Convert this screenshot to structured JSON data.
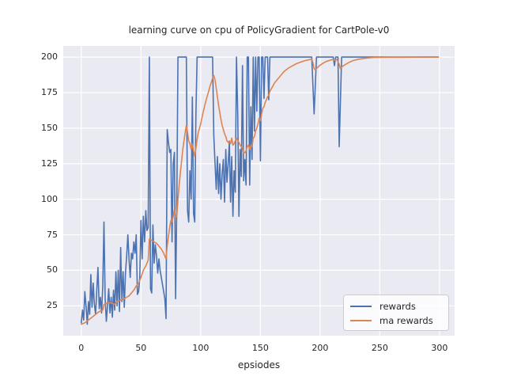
{
  "title": "learning curve on cpu of PolicyGradient for CartPole-v0",
  "chart_data": {
    "type": "line",
    "title": "learning curve on cpu of PolicyGradient for CartPole-v0",
    "xlabel": "epsiodes",
    "ylabel": "",
    "xlim": [
      -15.1,
      312.65
    ],
    "ylim": [
      4.0,
      207.85
    ],
    "xticks": [
      "0",
      "50",
      "100",
      "150",
      "200",
      "250",
      "300"
    ],
    "xtick_values": [
      0,
      50,
      100,
      150,
      200,
      250,
      300
    ],
    "yticks": [
      "25",
      "50",
      "75",
      "100",
      "125",
      "150",
      "175",
      "200"
    ],
    "ytick_values": [
      25,
      50,
      75,
      100,
      125,
      150,
      175,
      200
    ],
    "grid": true,
    "legend_position": "lower right",
    "colors": {
      "axes_background": "#EAEAF2",
      "grid": "#FFFFFF",
      "text": "#262626",
      "rewards": "#4C72B0",
      "ma_rewards": "#DD8452",
      "legend_face": "rgba(255,255,255,0.8)",
      "legend_edge": "#CCCCCC"
    },
    "legend": {
      "entries": [
        {
          "label": "rewards",
          "color": "#4C72B0"
        },
        {
          "label": "ma rewards",
          "color": "#DD8452"
        }
      ]
    },
    "series": [
      {
        "name": "rewards",
        "color": "#4C72B0",
        "points": [
          [
            0,
            13
          ],
          [
            1,
            22
          ],
          [
            2,
            15
          ],
          [
            3,
            35
          ],
          [
            4,
            25
          ],
          [
            5,
            12
          ],
          [
            6,
            28
          ],
          [
            7,
            19
          ],
          [
            8,
            47
          ],
          [
            9,
            24
          ],
          [
            10,
            41
          ],
          [
            11,
            26
          ],
          [
            12,
            19
          ],
          [
            13,
            36
          ],
          [
            14,
            52
          ],
          [
            15,
            23
          ],
          [
            16,
            31
          ],
          [
            17,
            20
          ],
          [
            18,
            39
          ],
          [
            19,
            84
          ],
          [
            20,
            30
          ],
          [
            21,
            14
          ],
          [
            22,
            25
          ],
          [
            23,
            37
          ],
          [
            24,
            20
          ],
          [
            25,
            31
          ],
          [
            26,
            17
          ],
          [
            27,
            36
          ],
          [
            28,
            22
          ],
          [
            29,
            49
          ],
          [
            30,
            25
          ],
          [
            31,
            50
          ],
          [
            32,
            21
          ],
          [
            33,
            66
          ],
          [
            34,
            28
          ],
          [
            35,
            49
          ],
          [
            36,
            24
          ],
          [
            37,
            48
          ],
          [
            38,
            60
          ],
          [
            39,
            75
          ],
          [
            40,
            58
          ],
          [
            41,
            45
          ],
          [
            42,
            62
          ],
          [
            43,
            58
          ],
          [
            44,
            70
          ],
          [
            45,
            62
          ],
          [
            46,
            75
          ],
          [
            47,
            33
          ],
          [
            48,
            35
          ],
          [
            49,
            45
          ],
          [
            50,
            85
          ],
          [
            51,
            58
          ],
          [
            52,
            88
          ],
          [
            53,
            70
          ],
          [
            54,
            92
          ],
          [
            55,
            78
          ],
          [
            56,
            80
          ],
          [
            57,
            200
          ],
          [
            58,
            37
          ],
          [
            59,
            34
          ],
          [
            60,
            82
          ],
          [
            61,
            55
          ],
          [
            62,
            68
          ],
          [
            63,
            60
          ],
          [
            64,
            48
          ],
          [
            65,
            58
          ],
          [
            66,
            50
          ],
          [
            67,
            45
          ],
          [
            68,
            40
          ],
          [
            69,
            35
          ],
          [
            70,
            30
          ],
          [
            71,
            16
          ],
          [
            72,
            149
          ],
          [
            73,
            140
          ],
          [
            74,
            133
          ],
          [
            75,
            135
          ],
          [
            76,
            70
          ],
          [
            77,
            125
          ],
          [
            78,
            133
          ],
          [
            79,
            30
          ],
          [
            80,
            96
          ],
          [
            81,
            200
          ],
          [
            88,
            200
          ],
          [
            89,
            92
          ],
          [
            90,
            84
          ],
          [
            91,
            120
          ],
          [
            92,
            100
          ],
          [
            93,
            172
          ],
          [
            94,
            90
          ],
          [
            95,
            84
          ],
          [
            96,
            160
          ],
          [
            97,
            200
          ],
          [
            110,
            200
          ],
          [
            111,
            145
          ],
          [
            112,
            125
          ],
          [
            113,
            107
          ],
          [
            114,
            130
          ],
          [
            115,
            104
          ],
          [
            116,
            125
          ],
          [
            117,
            100
          ],
          [
            118,
            118
          ],
          [
            119,
            128
          ],
          [
            120,
            98
          ],
          [
            121,
            135
          ],
          [
            122,
            112
          ],
          [
            123,
            125
          ],
          [
            124,
            140
          ],
          [
            125,
            98
          ],
          [
            126,
            130
          ],
          [
            127,
            88
          ],
          [
            128,
            120
          ],
          [
            129,
            105
          ],
          [
            130,
            200
          ],
          [
            131,
            160
          ],
          [
            132,
            88
          ],
          [
            133,
            135
          ],
          [
            134,
            116
          ],
          [
            135,
            194
          ],
          [
            136,
            113
          ],
          [
            137,
            128
          ],
          [
            138,
            110
          ],
          [
            139,
            200
          ],
          [
            140,
            200
          ],
          [
            141,
            110
          ],
          [
            142,
            165
          ],
          [
            143,
            128
          ],
          [
            144,
            200
          ],
          [
            145,
            148
          ],
          [
            146,
            200
          ],
          [
            147,
            162
          ],
          [
            148,
            200
          ],
          [
            149,
            200
          ],
          [
            150,
            127
          ],
          [
            151,
            200
          ],
          [
            152,
            200
          ],
          [
            153,
            171
          ],
          [
            154,
            200
          ],
          [
            155,
            200
          ],
          [
            156,
            200
          ],
          [
            157,
            170
          ],
          [
            158,
            200
          ],
          [
            193,
            200
          ],
          [
            195,
            160
          ],
          [
            197,
            200
          ],
          [
            211,
            200
          ],
          [
            212,
            194
          ],
          [
            213,
            200
          ],
          [
            215,
            200
          ],
          [
            216,
            137
          ],
          [
            218,
            200
          ],
          [
            299,
            200
          ]
        ]
      },
      {
        "name": "ma rewards",
        "color": "#DD8452",
        "points": [
          [
            0,
            12
          ],
          [
            3,
            13
          ],
          [
            6,
            15
          ],
          [
            9,
            17
          ],
          [
            12,
            19
          ],
          [
            15,
            21
          ],
          [
            18,
            22
          ],
          [
            19,
            26
          ],
          [
            22,
            27
          ],
          [
            25,
            27
          ],
          [
            28,
            26
          ],
          [
            30,
            28
          ],
          [
            33,
            29
          ],
          [
            36,
            30
          ],
          [
            38,
            31
          ],
          [
            40,
            32
          ],
          [
            42,
            34
          ],
          [
            44,
            36
          ],
          [
            46,
            39
          ],
          [
            48,
            41
          ],
          [
            50,
            45
          ],
          [
            52,
            50
          ],
          [
            54,
            53
          ],
          [
            56,
            57
          ],
          [
            57,
            72
          ],
          [
            59,
            71
          ],
          [
            61,
            70
          ],
          [
            63,
            69
          ],
          [
            65,
            67
          ],
          [
            67,
            65
          ],
          [
            69,
            62
          ],
          [
            70,
            60
          ],
          [
            71,
            58
          ],
          [
            72,
            67
          ],
          [
            73,
            74
          ],
          [
            74,
            80
          ],
          [
            75,
            85
          ],
          [
            76,
            84
          ],
          [
            77,
            88
          ],
          [
            78,
            93
          ],
          [
            79,
            87
          ],
          [
            80,
            88
          ],
          [
            81,
            100
          ],
          [
            82,
            110
          ],
          [
            83,
            119
          ],
          [
            84,
            127
          ],
          [
            85,
            135
          ],
          [
            86,
            141
          ],
          [
            87,
            147
          ],
          [
            88,
            152
          ],
          [
            89,
            147
          ],
          [
            90,
            141
          ],
          [
            91,
            139
          ],
          [
            92,
            135
          ],
          [
            93,
            139
          ],
          [
            94,
            134
          ],
          [
            95,
            130
          ],
          [
            96,
            136
          ],
          [
            97,
            142
          ],
          [
            98,
            147
          ],
          [
            100,
            153
          ],
          [
            102,
            161
          ],
          [
            104,
            168
          ],
          [
            106,
            174
          ],
          [
            108,
            180
          ],
          [
            110,
            185
          ],
          [
            111,
            187
          ],
          [
            112,
            184
          ],
          [
            113,
            178
          ],
          [
            114,
            172
          ],
          [
            115,
            166
          ],
          [
            116,
            161
          ],
          [
            117,
            156
          ],
          [
            118,
            152
          ],
          [
            119,
            149
          ],
          [
            120,
            146
          ],
          [
            121,
            144
          ],
          [
            122,
            141
          ],
          [
            123,
            140
          ],
          [
            124,
            141
          ],
          [
            125,
            139
          ],
          [
            126,
            143
          ],
          [
            127,
            138
          ],
          [
            128,
            139
          ],
          [
            129,
            141
          ],
          [
            130,
            143
          ],
          [
            131,
            141
          ],
          [
            132,
            140
          ],
          [
            133,
            138
          ],
          [
            134,
            137
          ],
          [
            135,
            136
          ],
          [
            136,
            132
          ],
          [
            137,
            133
          ],
          [
            138,
            134
          ],
          [
            139,
            137
          ],
          [
            140,
            138
          ],
          [
            141,
            135
          ],
          [
            142,
            138
          ],
          [
            143,
            137
          ],
          [
            144,
            143
          ],
          [
            145,
            144
          ],
          [
            146,
            148
          ],
          [
            147,
            150
          ],
          [
            148,
            153
          ],
          [
            149,
            157
          ],
          [
            150,
            155
          ],
          [
            151,
            160
          ],
          [
            152,
            164
          ],
          [
            153,
            165
          ],
          [
            154,
            168
          ],
          [
            155,
            170
          ],
          [
            156,
            172
          ],
          [
            157,
            173
          ],
          [
            158,
            176
          ],
          [
            160,
            179
          ],
          [
            162,
            182
          ],
          [
            164,
            184
          ],
          [
            166,
            186
          ],
          [
            168,
            188
          ],
          [
            170,
            190
          ],
          [
            173,
            192
          ],
          [
            176,
            193.5
          ],
          [
            180,
            195.3
          ],
          [
            184,
            196.6
          ],
          [
            188,
            197.6
          ],
          [
            192,
            198.4
          ],
          [
            193,
            198.6
          ],
          [
            194,
            196
          ],
          [
            195,
            192
          ],
          [
            196,
            191
          ],
          [
            198,
            192.8
          ],
          [
            200,
            194.3
          ],
          [
            203,
            196
          ],
          [
            206,
            197.2
          ],
          [
            210,
            198.2
          ],
          [
            212,
            197.8
          ],
          [
            214,
            198.4
          ],
          [
            216,
            195
          ],
          [
            217,
            192
          ],
          [
            219,
            193.6
          ],
          [
            222,
            195.2
          ],
          [
            225,
            196.6
          ],
          [
            228,
            197.6
          ],
          [
            232,
            198.5
          ],
          [
            236,
            199
          ],
          [
            240,
            199.4
          ],
          [
            245,
            199.7
          ],
          [
            250,
            199.8
          ],
          [
            260,
            199.9
          ],
          [
            270,
            199.9
          ],
          [
            285,
            200
          ],
          [
            299,
            200
          ]
        ]
      }
    ]
  }
}
